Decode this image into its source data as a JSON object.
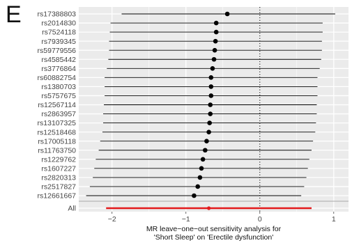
{
  "panel_label": "E",
  "chart_data": {
    "type": "forest",
    "xlabel_lines": [
      "MR leave−one−out sensitivity analysis for",
      "'Short Sleep' on 'Erectile dysfunction'"
    ],
    "xlim": [
      -2.45,
      1.2
    ],
    "xticks": [
      -2,
      -1,
      0,
      1
    ],
    "xtick_labels": [
      "−2",
      "−1",
      "0",
      "1"
    ],
    "reference_line": 0,
    "grid": true,
    "background": "#ebebeb",
    "colors": {
      "snp": "#000000",
      "overall": "#e31a1c",
      "grid": "#ffffff",
      "reference": "#222222"
    },
    "snps": [
      {
        "label": "rs17388803",
        "estimate": -0.44,
        "lower": -1.87,
        "upper": 1.02
      },
      {
        "label": "rs2014830",
        "estimate": -0.59,
        "lower": -2.02,
        "upper": 0.85
      },
      {
        "label": "rs7524118",
        "estimate": -0.59,
        "lower": -2.03,
        "upper": 0.85
      },
      {
        "label": "rs7939345",
        "estimate": -0.6,
        "lower": -2.04,
        "upper": 0.84
      },
      {
        "label": "rs59779556",
        "estimate": -0.61,
        "lower": -2.04,
        "upper": 0.84
      },
      {
        "label": "rs4585442",
        "estimate": -0.62,
        "lower": -2.05,
        "upper": 0.83
      },
      {
        "label": "rs3776864",
        "estimate": -0.64,
        "lower": -2.07,
        "upper": 0.81
      },
      {
        "label": "rs60882754",
        "estimate": -0.66,
        "lower": -2.1,
        "upper": 0.78
      },
      {
        "label": "rs1380703",
        "estimate": -0.66,
        "lower": -2.1,
        "upper": 0.78
      },
      {
        "label": "rs5757675",
        "estimate": -0.66,
        "lower": -2.1,
        "upper": 0.78
      },
      {
        "label": "rs12567114",
        "estimate": -0.67,
        "lower": -2.11,
        "upper": 0.77
      },
      {
        "label": "rs2863957",
        "estimate": -0.67,
        "lower": -2.12,
        "upper": 0.77
      },
      {
        "label": "rs13107325",
        "estimate": -0.68,
        "lower": -2.12,
        "upper": 0.76
      },
      {
        "label": "rs12518468",
        "estimate": -0.69,
        "lower": -2.13,
        "upper": 0.75
      },
      {
        "label": "rs17005118",
        "estimate": -0.72,
        "lower": -2.16,
        "upper": 0.72
      },
      {
        "label": "rs11763750",
        "estimate": -0.74,
        "lower": -2.18,
        "upper": 0.7
      },
      {
        "label": "rs1229762",
        "estimate": -0.77,
        "lower": -2.22,
        "upper": 0.67
      },
      {
        "label": "rs1607227",
        "estimate": -0.79,
        "lower": -2.24,
        "upper": 0.65
      },
      {
        "label": "rs2820313",
        "estimate": -0.81,
        "lower": -2.26,
        "upper": 0.63
      },
      {
        "label": "rs2517827",
        "estimate": -0.84,
        "lower": -2.3,
        "upper": 0.6
      },
      {
        "label": "rs12661667",
        "estimate": -0.89,
        "lower": -2.35,
        "upper": 0.56
      }
    ],
    "overall": {
      "label": "All",
      "estimate": -0.69,
      "lower": -2.08,
      "upper": 0.7
    }
  }
}
